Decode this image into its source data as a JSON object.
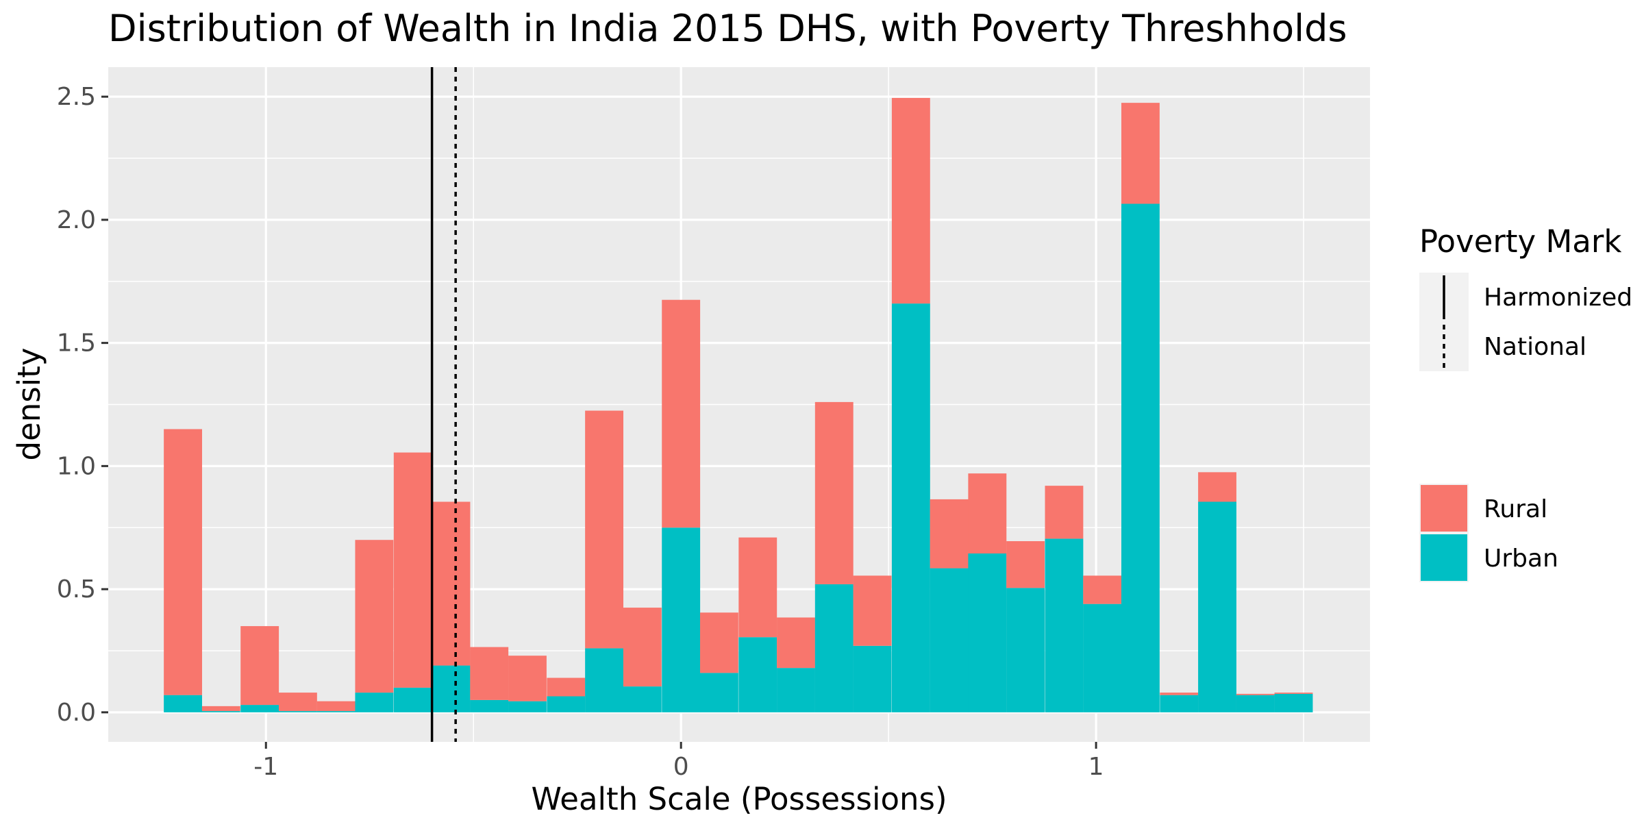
{
  "chart_data": {
    "type": "bar",
    "stacked": true,
    "title": "Distribution of Wealth in India 2015 DHS, with Poverty Threshholds",
    "xlabel": "Wealth Scale (Possessions)",
    "ylabel": "density",
    "xlim": [
      -1.38,
      1.66
    ],
    "ylim": [
      -0.12,
      2.62
    ],
    "x_ticks": [
      -1,
      0,
      1
    ],
    "x_tick_labels": [
      "-1",
      "0",
      "1"
    ],
    "y_ticks": [
      0.0,
      0.5,
      1.0,
      1.5,
      2.0,
      2.5
    ],
    "y_tick_labels": [
      "0.0",
      "0.5",
      "1.0",
      "1.5",
      "2.0",
      "2.5"
    ],
    "grid": true,
    "bin_width": 0.0922,
    "bin_centers": [
      -1.2,
      -1.108,
      -1.015,
      -0.923,
      -0.831,
      -0.739,
      -0.646,
      -0.554,
      -0.462,
      -0.37,
      -0.277,
      -0.185,
      -0.093,
      0.0,
      0.092,
      0.185,
      0.277,
      0.369,
      0.461,
      0.554,
      0.646,
      0.738,
      0.83,
      0.923,
      1.015,
      1.107,
      1.2,
      1.292,
      1.384,
      1.476
    ],
    "series": [
      {
        "name": "Urban",
        "color": "#00BFC4",
        "values": [
          0.07,
          0.005,
          0.03,
          0.005,
          0.005,
          0.08,
          0.1,
          0.19,
          0.05,
          0.045,
          0.065,
          0.26,
          0.105,
          0.75,
          0.16,
          0.305,
          0.18,
          0.52,
          0.27,
          1.66,
          0.585,
          0.645,
          0.505,
          0.705,
          0.44,
          2.065,
          0.07,
          0.855,
          0.07,
          0.075
        ]
      },
      {
        "name": "Rural",
        "color": "#F8766D",
        "values": [
          1.08,
          0.02,
          0.32,
          0.075,
          0.04,
          0.62,
          0.955,
          0.665,
          0.215,
          0.185,
          0.075,
          0.965,
          0.32,
          0.925,
          0.245,
          0.405,
          0.205,
          0.74,
          0.285,
          0.835,
          0.28,
          0.325,
          0.19,
          0.215,
          0.115,
          0.41,
          0.01,
          0.12,
          0.005,
          0.005
        ]
      }
    ],
    "reference_lines": [
      {
        "name": "Harmonized",
        "x": -0.6,
        "style": "solid"
      },
      {
        "name": "National",
        "x": -0.543,
        "style": "dashed"
      }
    ],
    "legends": [
      {
        "title": "Poverty Mark",
        "entries": [
          "Harmonized",
          "National"
        ]
      },
      {
        "title": "",
        "entries": [
          "Rural",
          "Urban"
        ]
      }
    ],
    "legend_position": "right",
    "colors": {
      "panel": "#EBEBEB",
      "grid": "#FFFFFF",
      "rural": "#F8766D",
      "urban": "#00BFC4",
      "line": "#000000"
    }
  }
}
